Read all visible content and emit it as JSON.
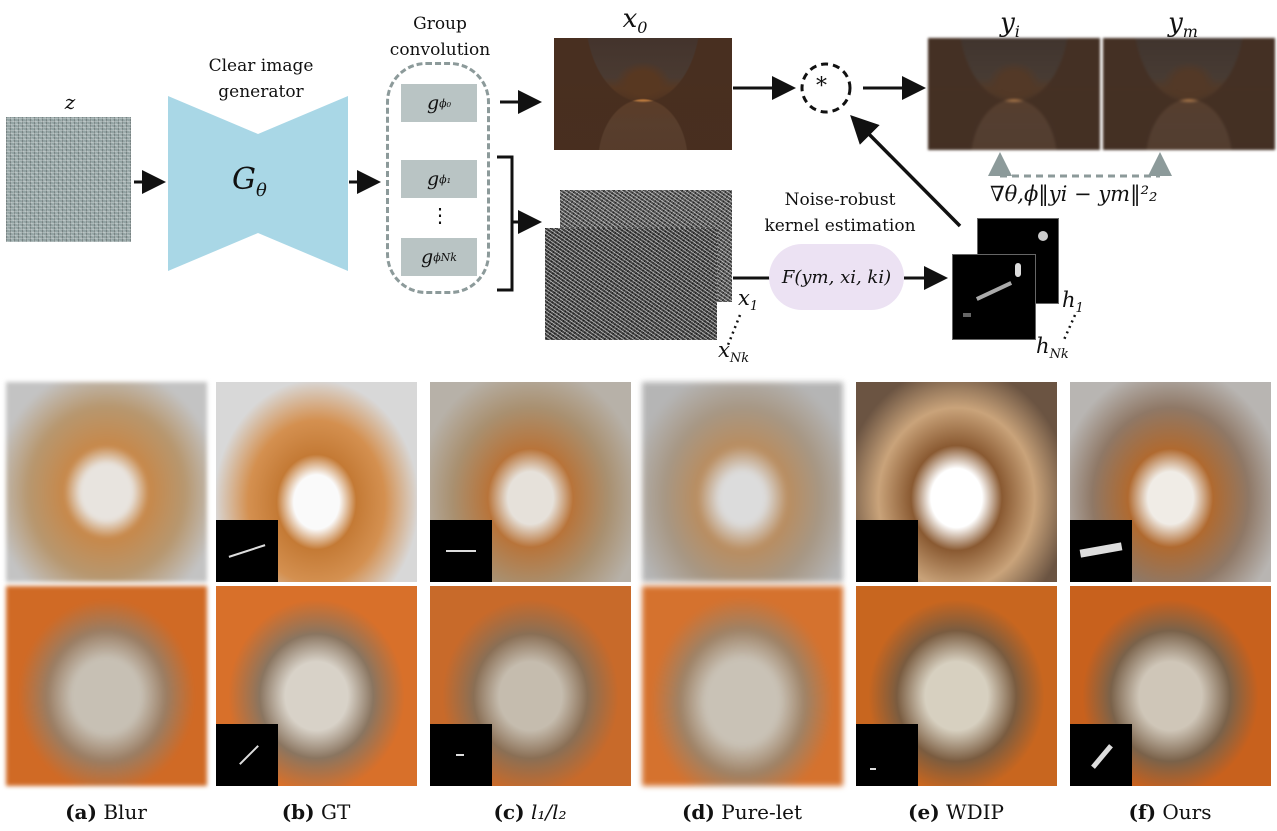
{
  "diagram": {
    "z_label": "z",
    "generator_label_line1": "Clear image",
    "generator_label_line2": "generator",
    "generator_symbol": "G",
    "generator_subscript": "θ",
    "group_conv_line1": "Group",
    "group_conv_line2": "convolution",
    "g0": "g",
    "g0_sub": "ϕ₀",
    "g1": "g",
    "g1_sub": "ϕ₁",
    "gN": "g",
    "gN_sub": "ϕNk",
    "vdots": "⋮",
    "x0_label": "x",
    "x0_sub": "0",
    "conv_symbol": "*",
    "yi_label": "y",
    "yi_sub": "i",
    "ym_label": "y",
    "ym_sub": "m",
    "loss_label": "∇θ,ϕ‖yi − ym‖²₂",
    "kernel_est_line1": "Noise-robust",
    "kernel_est_line2": "kernel estimation",
    "kernel_func": "F(ym, xi, ki)",
    "x1_label": "x",
    "x1_sub": "1",
    "xN_label": "x",
    "xN_sub": "Nk",
    "h1_label": "h",
    "h1_sub": "1",
    "hN_label": "h",
    "hN_sub": "Nk"
  },
  "captions": [
    {
      "letter": "(a)",
      "text": "Blur"
    },
    {
      "letter": "(b)",
      "text": "GT"
    },
    {
      "letter": "(c)",
      "text": "l₁/l₂"
    },
    {
      "letter": "(d)",
      "text": "Pure-let"
    },
    {
      "letter": "(e)",
      "text": "WDIP"
    },
    {
      "letter": "(f)",
      "text": "Ours"
    }
  ],
  "colors": {
    "generator": "#a9d7e6",
    "gbox": "#b9c4c4",
    "kernel_bubble": "#ece2f3",
    "dashed_gray": "#8c9a9a",
    "dog_orange": "#c9843f",
    "cat_orange": "#d8702a"
  }
}
